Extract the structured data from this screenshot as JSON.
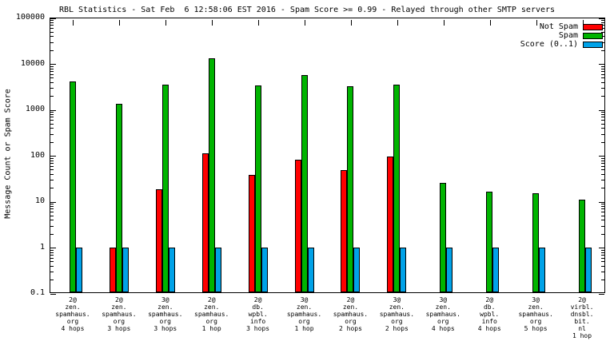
{
  "chart_data": {
    "type": "bar",
    "title": "RBL Statistics - Sat Feb  6 12:58:06 EST 2016 - Spam Score >= 0.99 - Relayed through other SMTP servers",
    "xlabel": "",
    "ylabel": "Message Count or Spam Score",
    "yscale": "log",
    "ylim": [
      0.1,
      100000
    ],
    "yticks": [
      0.1,
      1,
      10,
      100,
      1000,
      10000,
      100000
    ],
    "grid": false,
    "legend_position": "top-right",
    "categories": [
      [
        "2@",
        "zen.",
        "spamhaus.",
        "org",
        "4 hops"
      ],
      [
        "2@",
        "zen.",
        "spamhaus.",
        "org",
        "3 hops"
      ],
      [
        "3@",
        "zen.",
        "spamhaus.",
        "org",
        "3 hops"
      ],
      [
        "2@",
        "zen.",
        "spamhaus.",
        "org",
        "1 hop"
      ],
      [
        "2@",
        "db.",
        "wpbl.",
        "info",
        "3 hops"
      ],
      [
        "3@",
        "zen.",
        "spamhaus.",
        "org",
        "1 hop"
      ],
      [
        "2@",
        "zen.",
        "spamhaus.",
        "org",
        "2 hops"
      ],
      [
        "3@",
        "zen.",
        "spamhaus.",
        "org",
        "2 hops"
      ],
      [
        "3@",
        "zen.",
        "spamhaus.",
        "org",
        "4 hops"
      ],
      [
        "2@",
        "db.",
        "wpbl.",
        "info",
        "4 hops"
      ],
      [
        "3@",
        "zen.",
        "spamhaus.",
        "org",
        "5 hops"
      ],
      [
        "2@",
        "virbl.",
        "dnsbl.",
        "bit.",
        "nl",
        "1 hop"
      ]
    ],
    "series": [
      {
        "name": "Not Spam",
        "color": "#ff0000",
        "values": [
          null,
          1,
          18,
          110,
          38,
          80,
          48,
          95,
          null,
          null,
          null,
          null
        ]
      },
      {
        "name": "Spam",
        "color": "#00b400",
        "values": [
          4000,
          1300,
          3500,
          13000,
          3300,
          5500,
          3200,
          3400,
          25,
          16,
          15,
          11
        ]
      },
      {
        "name": "Score (0..1)",
        "color": "#00a2e8",
        "values": [
          1,
          1,
          1,
          1,
          1,
          1,
          1,
          1,
          1,
          1,
          1,
          1
        ]
      }
    ]
  }
}
